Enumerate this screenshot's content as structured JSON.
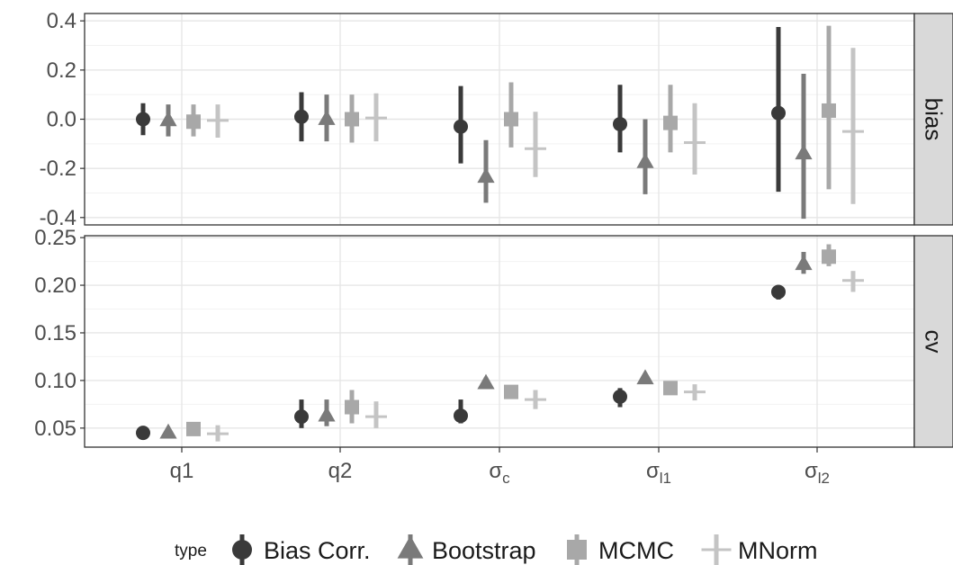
{
  "chart_data": {
    "type": "scatter",
    "description_note": "",
    "categories": [
      {
        "id": "q1",
        "main": "q1",
        "sub": ""
      },
      {
        "id": "q2",
        "main": "q2",
        "sub": ""
      },
      {
        "id": "sc",
        "main": "σ",
        "sub": "c"
      },
      {
        "id": "sl1",
        "main": "σ",
        "sub": "l1"
      },
      {
        "id": "sl2",
        "main": "σ",
        "sub": "l2"
      }
    ],
    "legend": {
      "title": "type",
      "position": "bottom",
      "entries": [
        "Bias Corr.",
        "Bootstrap",
        "MCMC",
        "MNorm"
      ]
    },
    "series_styles": [
      {
        "name": "Bias Corr.",
        "shape": "circle",
        "color": "#3a3a3a"
      },
      {
        "name": "Bootstrap",
        "shape": "triangle",
        "color": "#7a7a7a"
      },
      {
        "name": "MCMC",
        "shape": "square",
        "color": "#a8a8a8"
      },
      {
        "name": "MNorm",
        "shape": "plus",
        "color": "#c4c4c4"
      }
    ],
    "grid": true,
    "panels": [
      {
        "strip": "bias",
        "ylim": [
          -0.43,
          0.43
        ],
        "yticks": [
          -0.4,
          -0.2,
          0.0,
          0.2,
          0.4
        ],
        "ytick_labels": [
          "-0.4",
          "-0.2",
          "0.0",
          "0.2",
          "0.4"
        ],
        "series": [
          {
            "name": "Bias Corr.",
            "points": [
              {
                "y": 0.0,
                "lo": -0.065,
                "hi": 0.065
              },
              {
                "y": 0.01,
                "lo": -0.09,
                "hi": 0.11
              },
              {
                "y": -0.03,
                "lo": -0.18,
                "hi": 0.135
              },
              {
                "y": -0.02,
                "lo": -0.135,
                "hi": 0.14
              },
              {
                "y": 0.025,
                "lo": -0.295,
                "hi": 0.375
              }
            ]
          },
          {
            "name": "Bootstrap",
            "points": [
              {
                "y": -0.005,
                "lo": -0.07,
                "hi": 0.06
              },
              {
                "y": 0.0,
                "lo": -0.09,
                "hi": 0.1
              },
              {
                "y": -0.235,
                "lo": -0.34,
                "hi": -0.085
              },
              {
                "y": -0.175,
                "lo": -0.305,
                "hi": 0.0
              },
              {
                "y": -0.14,
                "lo": -0.405,
                "hi": 0.185
              }
            ]
          },
          {
            "name": "MCMC",
            "points": [
              {
                "y": -0.01,
                "lo": -0.07,
                "hi": 0.06
              },
              {
                "y": 0.0,
                "lo": -0.095,
                "hi": 0.1
              },
              {
                "y": 0.0,
                "lo": -0.115,
                "hi": 0.15
              },
              {
                "y": -0.015,
                "lo": -0.135,
                "hi": 0.14
              },
              {
                "y": 0.035,
                "lo": -0.285,
                "hi": 0.38
              }
            ]
          },
          {
            "name": "MNorm",
            "points": [
              {
                "y": -0.005,
                "lo": -0.075,
                "hi": 0.06
              },
              {
                "y": 0.005,
                "lo": -0.09,
                "hi": 0.105
              },
              {
                "y": -0.12,
                "lo": -0.235,
                "hi": 0.03
              },
              {
                "y": -0.095,
                "lo": -0.225,
                "hi": 0.065
              },
              {
                "y": -0.05,
                "lo": -0.345,
                "hi": 0.29
              }
            ]
          }
        ]
      },
      {
        "strip": "cv",
        "ylim": [
          0.03,
          0.252
        ],
        "yticks": [
          0.05,
          0.1,
          0.15,
          0.2,
          0.25
        ],
        "ytick_labels": [
          "0.05",
          "0.10",
          "0.15",
          "0.20",
          "0.25"
        ],
        "series": [
          {
            "name": "Bias Corr.",
            "points": [
              {
                "y": 0.045,
                "lo": 0.041,
                "hi": 0.049
              },
              {
                "y": 0.062,
                "lo": 0.05,
                "hi": 0.08
              },
              {
                "y": 0.063,
                "lo": 0.055,
                "hi": 0.08
              },
              {
                "y": 0.083,
                "lo": 0.072,
                "hi": 0.092
              },
              {
                "y": 0.193,
                "lo": 0.185,
                "hi": 0.2
              }
            ]
          },
          {
            "name": "Bootstrap",
            "points": [
              {
                "y": 0.045,
                "lo": 0.041,
                "hi": 0.05
              },
              {
                "y": 0.063,
                "lo": 0.052,
                "hi": 0.08
              },
              {
                "y": 0.097,
                "lo": 0.092,
                "hi": 0.103
              },
              {
                "y": 0.102,
                "lo": 0.097,
                "hi": 0.107
              },
              {
                "y": 0.222,
                "lo": 0.212,
                "hi": 0.235
              }
            ]
          },
          {
            "name": "MCMC",
            "points": [
              {
                "y": 0.049,
                "lo": 0.043,
                "hi": 0.056
              },
              {
                "y": 0.072,
                "lo": 0.055,
                "hi": 0.09
              },
              {
                "y": 0.088,
                "lo": 0.083,
                "hi": 0.095
              },
              {
                "y": 0.092,
                "lo": 0.087,
                "hi": 0.097
              },
              {
                "y": 0.23,
                "lo": 0.22,
                "hi": 0.243
              }
            ]
          },
          {
            "name": "MNorm",
            "points": [
              {
                "y": 0.044,
                "lo": 0.036,
                "hi": 0.053
              },
              {
                "y": 0.062,
                "lo": 0.05,
                "hi": 0.078
              },
              {
                "y": 0.08,
                "lo": 0.07,
                "hi": 0.09
              },
              {
                "y": 0.088,
                "lo": 0.079,
                "hi": 0.096
              },
              {
                "y": 0.205,
                "lo": 0.193,
                "hi": 0.215
              }
            ]
          }
        ]
      }
    ]
  }
}
